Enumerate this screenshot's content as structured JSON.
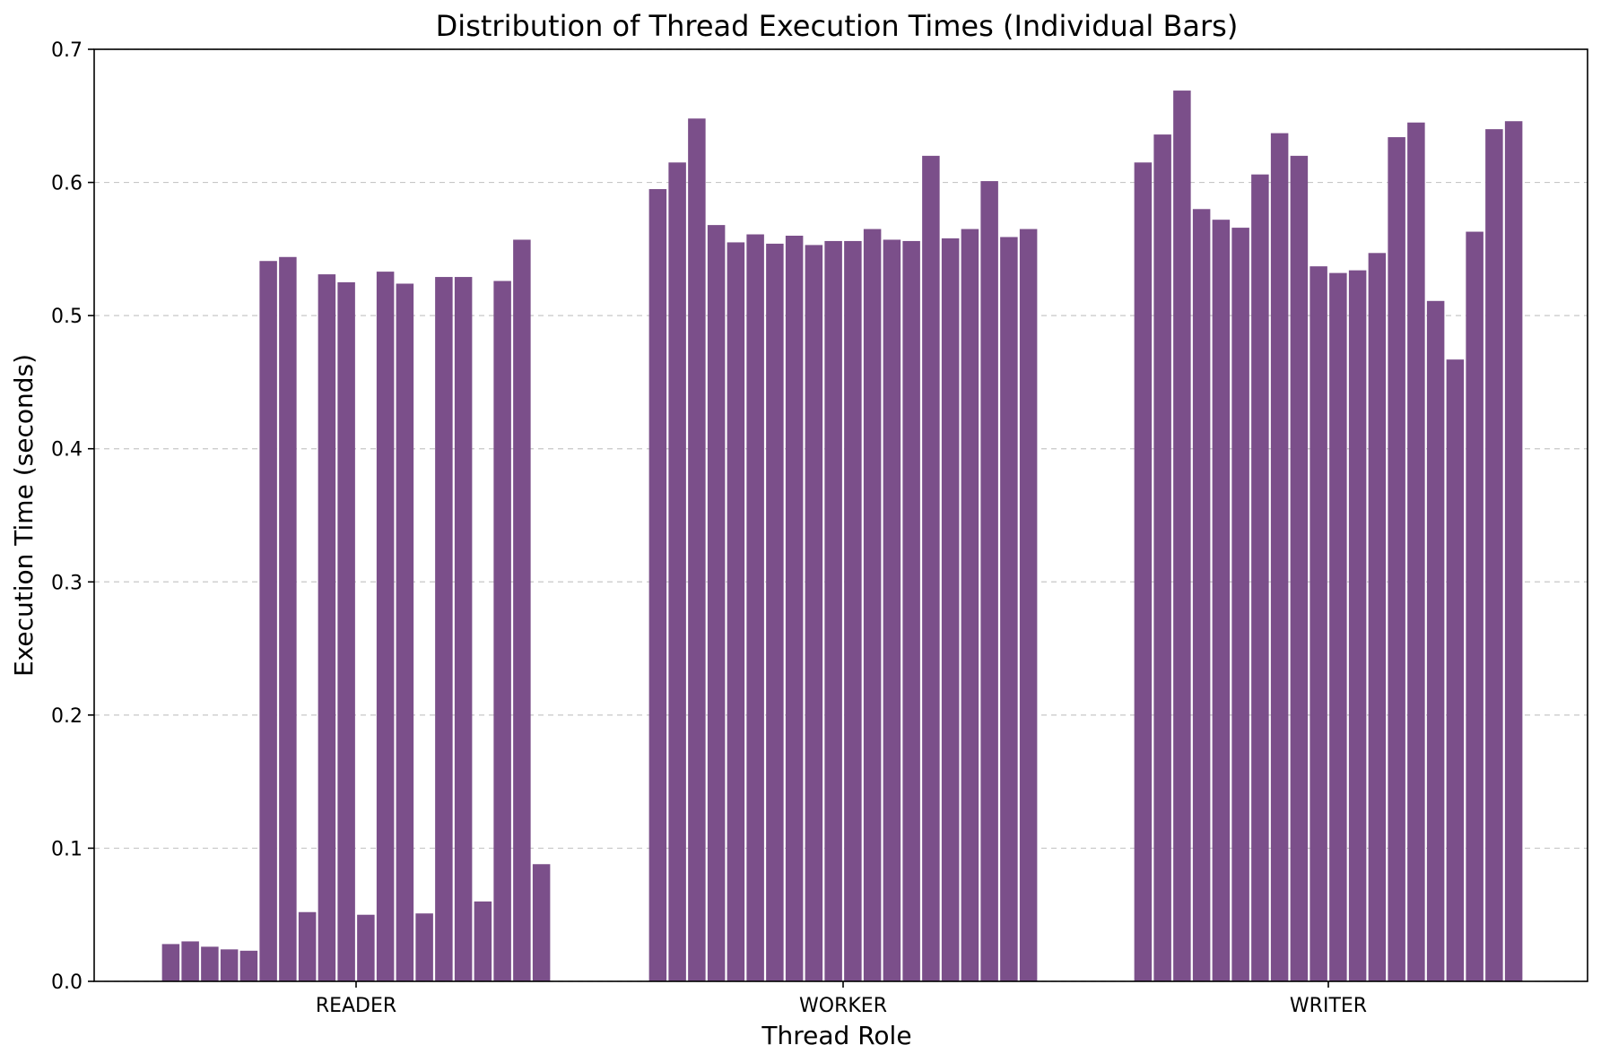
{
  "chart_data": {
    "type": "bar",
    "title": "Distribution of Thread Execution Times (Individual Bars)",
    "xlabel": "Thread Role",
    "ylabel": "Execution Time (seconds)",
    "ylim": [
      0,
      0.7
    ],
    "yticks": [
      "0.0",
      "0.1",
      "0.2",
      "0.3",
      "0.4",
      "0.5",
      "0.6",
      "0.7"
    ],
    "grid": "y-dashed",
    "bar_color": "#7b4f8a",
    "categories": [
      "READER",
      "WORKER",
      "WRITER"
    ],
    "groups": [
      {
        "category": "READER",
        "values": [
          0.028,
          0.03,
          0.026,
          0.024,
          0.023,
          0.541,
          0.544,
          0.052,
          0.531,
          0.525,
          0.05,
          0.533,
          0.524,
          0.051,
          0.529,
          0.529,
          0.06,
          0.526,
          0.557,
          0.088
        ]
      },
      {
        "category": "WORKER",
        "values": [
          0.595,
          0.615,
          0.648,
          0.568,
          0.555,
          0.561,
          0.554,
          0.56,
          0.553,
          0.556,
          0.556,
          0.565,
          0.557,
          0.556,
          0.62,
          0.558,
          0.565,
          0.601,
          0.559,
          0.565
        ]
      },
      {
        "category": "WRITER",
        "values": [
          0.615,
          0.636,
          0.669,
          0.58,
          0.572,
          0.566,
          0.606,
          0.637,
          0.62,
          0.537,
          0.532,
          0.534,
          0.547,
          0.634,
          0.645,
          0.511,
          0.467,
          0.563,
          0.64,
          0.646
        ]
      }
    ]
  }
}
